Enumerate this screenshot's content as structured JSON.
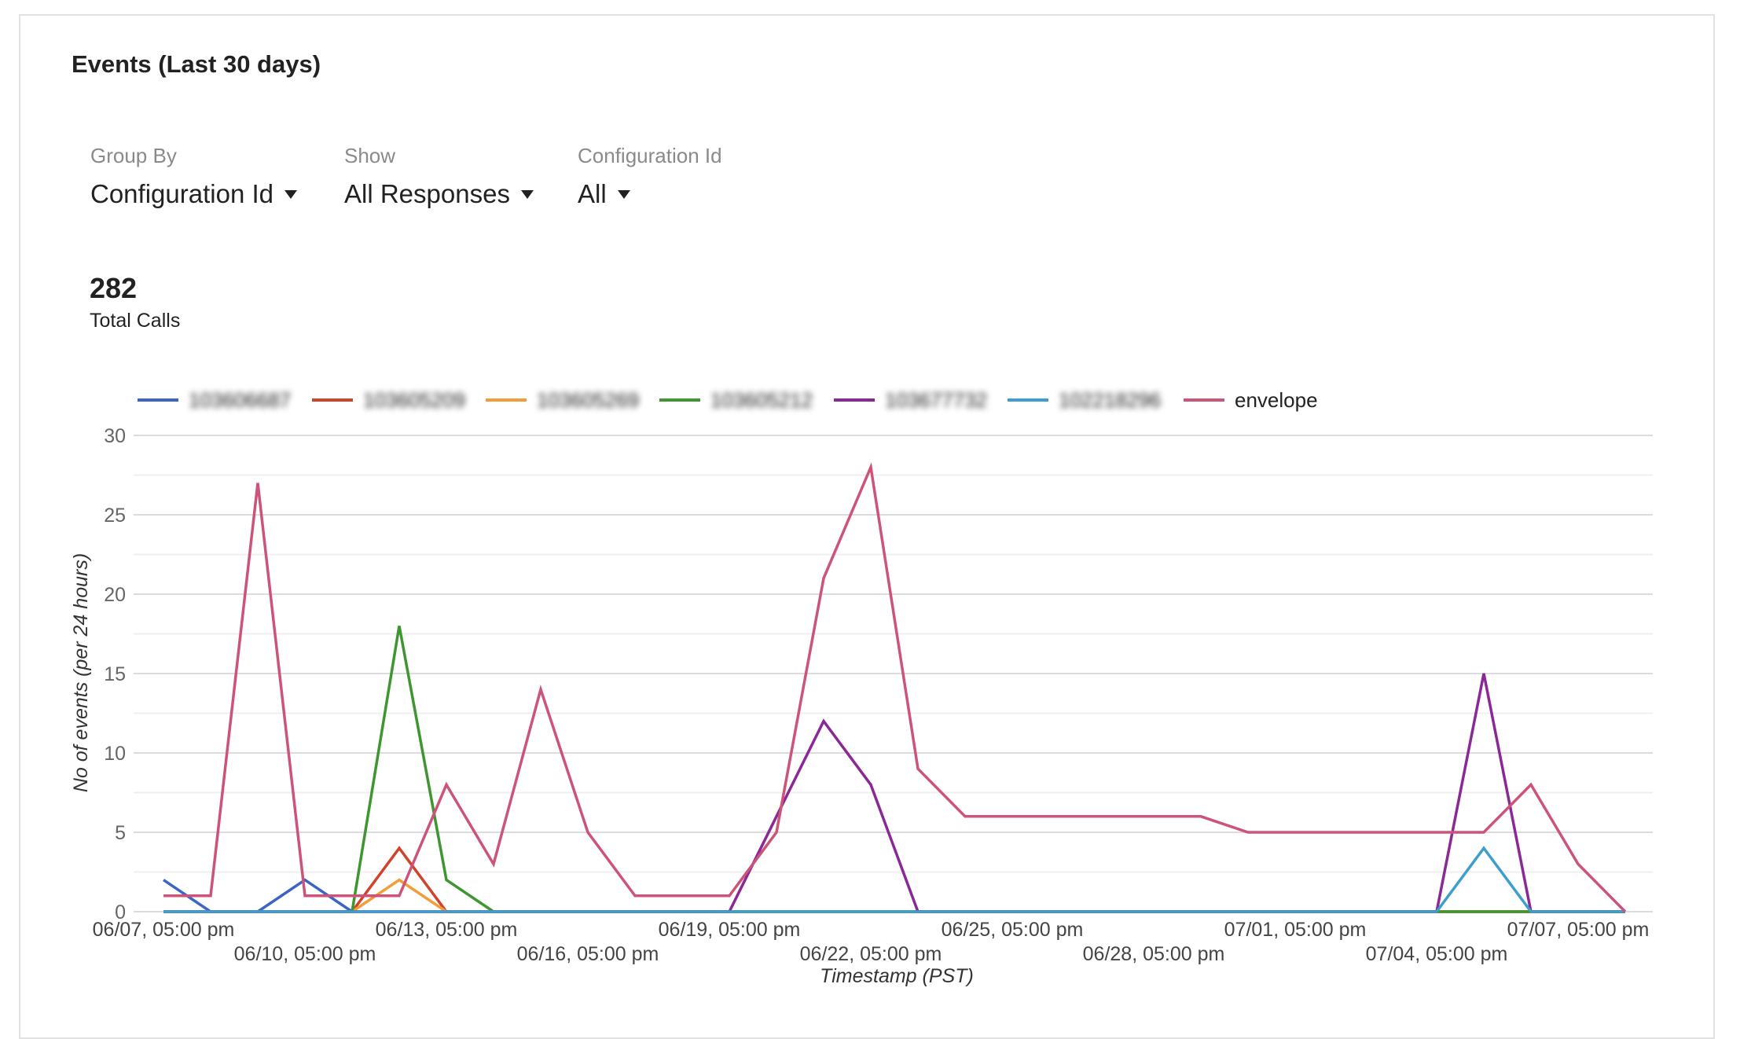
{
  "panel": {
    "title": "Events (Last 30 days)"
  },
  "filters": [
    {
      "label": "Group By",
      "value": "Configuration Id"
    },
    {
      "label": "Show",
      "value": "All Responses"
    },
    {
      "label": "Configuration Id",
      "value": "All"
    }
  ],
  "summary": {
    "value": "282",
    "label": "Total Calls"
  },
  "chart_data": {
    "type": "line",
    "xlabel": "Timestamp (PST)",
    "ylabel": "No of events (per 24 hours)",
    "ylim": [
      0,
      30
    ],
    "yticks": [
      0,
      5,
      10,
      15,
      20,
      25,
      30
    ],
    "grid": true,
    "legend_position": "top",
    "x": [
      "06/07, 05:00 pm",
      "06/08, 05:00 pm",
      "06/09, 05:00 pm",
      "06/10, 05:00 pm",
      "06/11, 05:00 pm",
      "06/12, 05:00 pm",
      "06/13, 05:00 pm",
      "06/14, 05:00 pm",
      "06/15, 05:00 pm",
      "06/16, 05:00 pm",
      "06/17, 05:00 pm",
      "06/18, 05:00 pm",
      "06/19, 05:00 pm",
      "06/20, 05:00 pm",
      "06/21, 05:00 pm",
      "06/22, 05:00 pm",
      "06/23, 05:00 pm",
      "06/24, 05:00 pm",
      "06/25, 05:00 pm",
      "06/26, 05:00 pm",
      "06/27, 05:00 pm",
      "06/28, 05:00 pm",
      "06/29, 05:00 pm",
      "06/30, 05:00 pm",
      "07/01, 05:00 pm",
      "07/02, 05:00 pm",
      "07/03, 05:00 pm",
      "07/04, 05:00 pm",
      "07/05, 05:00 pm",
      "07/06, 05:00 pm",
      "07/07, 05:00 pm",
      "07/08, 05:00 pm"
    ],
    "xticks_row1": [
      "06/07, 05:00 pm",
      "06/13, 05:00 pm",
      "06/19, 05:00 pm",
      "06/25, 05:00 pm",
      "07/01, 05:00 pm",
      "07/07, 05:00 pm"
    ],
    "xticks_row2": [
      "06/10, 05:00 pm",
      "06/16, 05:00 pm",
      "06/22, 05:00 pm",
      "06/28, 05:00 pm",
      "07/04, 05:00 pm"
    ],
    "series": [
      {
        "name": "103606687",
        "redacted": true,
        "color": "#3b64c4",
        "values": [
          2,
          0,
          0,
          2,
          0,
          0,
          0,
          0,
          0,
          0,
          0,
          0,
          0,
          0,
          0,
          0,
          0,
          0,
          0,
          0,
          0,
          0,
          0,
          0,
          0,
          0,
          0,
          0,
          0,
          0,
          0,
          0
        ]
      },
      {
        "name": "103605209",
        "redacted": true,
        "color": "#d0432b",
        "values": [
          0,
          0,
          0,
          0,
          0,
          4,
          0,
          0,
          0,
          0,
          0,
          0,
          0,
          0,
          0,
          0,
          0,
          0,
          0,
          0,
          0,
          0,
          0,
          0,
          0,
          0,
          0,
          0,
          0,
          0,
          0,
          0
        ]
      },
      {
        "name": "103605269",
        "redacted": true,
        "color": "#f39c38",
        "values": [
          0,
          0,
          0,
          0,
          0,
          2,
          0,
          0,
          0,
          0,
          0,
          0,
          0,
          0,
          0,
          0,
          0,
          0,
          0,
          0,
          0,
          0,
          0,
          0,
          0,
          0,
          0,
          0,
          0,
          0,
          0,
          0
        ]
      },
      {
        "name": "103605212",
        "redacted": true,
        "color": "#3d962f",
        "values": [
          0,
          0,
          0,
          0,
          0,
          18,
          2,
          0,
          0,
          0,
          0,
          0,
          0,
          0,
          0,
          0,
          0,
          0,
          0,
          0,
          0,
          0,
          0,
          0,
          0,
          0,
          0,
          0,
          0,
          0,
          0,
          0
        ]
      },
      {
        "name": "103677732",
        "redacted": true,
        "color": "#8a2896",
        "values": [
          0,
          0,
          0,
          0,
          0,
          0,
          0,
          0,
          0,
          0,
          0,
          0,
          0,
          6,
          12,
          8,
          0,
          0,
          0,
          0,
          0,
          0,
          0,
          0,
          0,
          0,
          0,
          0,
          15,
          0,
          0,
          0
        ]
      },
      {
        "name": "102218296",
        "redacted": true,
        "color": "#3f9ecc",
        "values": [
          0,
          0,
          0,
          0,
          0,
          0,
          0,
          0,
          0,
          0,
          0,
          0,
          0,
          0,
          0,
          0,
          0,
          0,
          0,
          0,
          0,
          0,
          0,
          0,
          0,
          0,
          0,
          0,
          4,
          0,
          0,
          0
        ]
      },
      {
        "name": "envelope",
        "redacted": false,
        "color": "#cc5478",
        "values": [
          1,
          1,
          27,
          1,
          1,
          1,
          8,
          3,
          14,
          5,
          1,
          1,
          1,
          5,
          21,
          28,
          9,
          6,
          6,
          6,
          6,
          6,
          6,
          5,
          5,
          5,
          5,
          5,
          5,
          8,
          3,
          0
        ]
      }
    ]
  }
}
